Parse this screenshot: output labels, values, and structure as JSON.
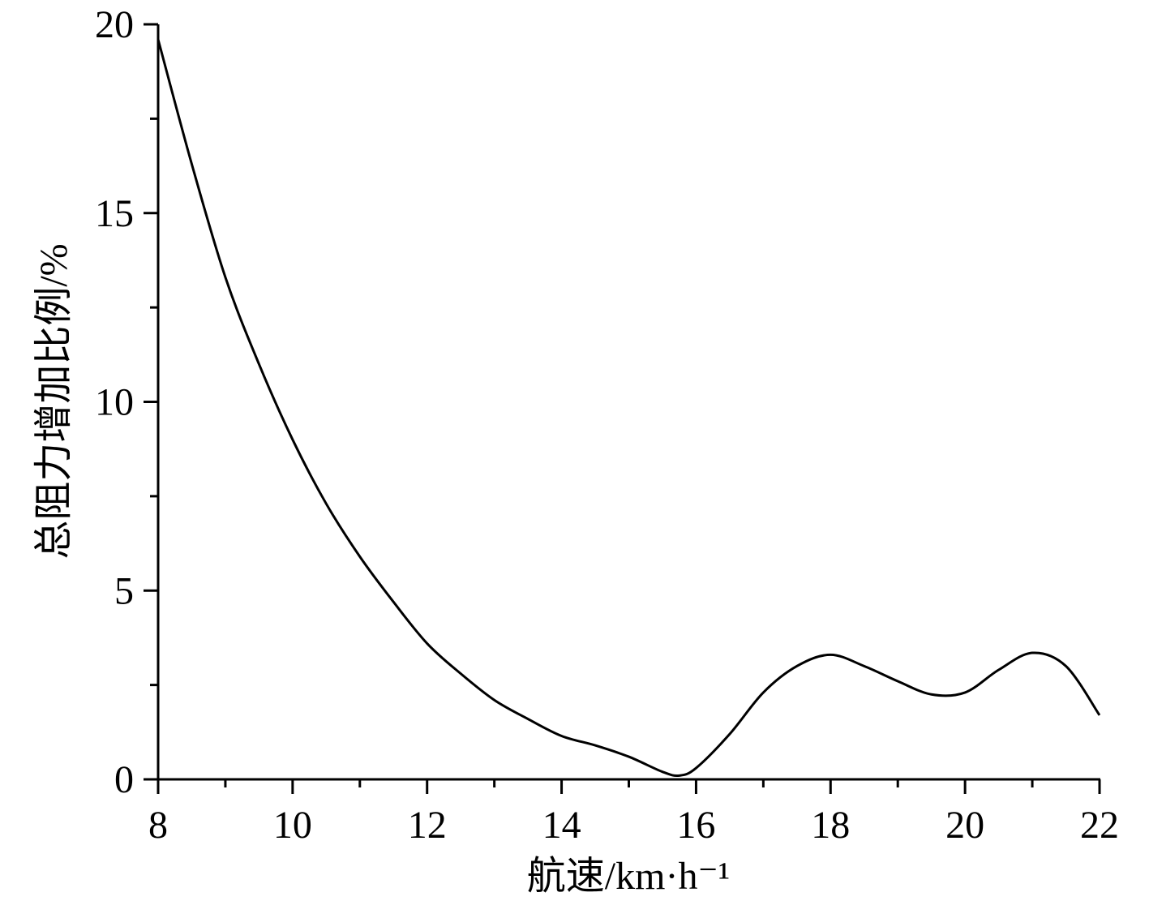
{
  "chart_data": {
    "type": "line",
    "x_label": "航速/km·h⁻¹",
    "y_label": "总阻力增加比例/%",
    "x": [
      8,
      8.5,
      9,
      9.5,
      10,
      10.5,
      11,
      11.5,
      12,
      12.5,
      13,
      13.5,
      14,
      14.5,
      15,
      15.5,
      15.75,
      16,
      16.5,
      17,
      17.5,
      18,
      18.5,
      19,
      19.5,
      20,
      20.5,
      21,
      21.5,
      22
    ],
    "series": [
      {
        "name": "总阻力增加比例",
        "color": "#000000",
        "values": [
          19.6,
          16.3,
          13.3,
          11.0,
          9.0,
          7.3,
          5.9,
          4.7,
          3.6,
          2.8,
          2.1,
          1.6,
          1.15,
          0.9,
          0.6,
          0.2,
          0.1,
          0.3,
          1.2,
          2.3,
          3.0,
          3.3,
          3.0,
          2.6,
          2.25,
          2.3,
          2.9,
          3.35,
          3.0,
          1.7
        ]
      }
    ],
    "xlim": [
      8,
      22
    ],
    "xticks": [
      8,
      10,
      12,
      14,
      16,
      18,
      20,
      22
    ],
    "xminorticks": [
      9,
      11,
      13,
      15,
      17,
      19,
      21
    ],
    "ylim": [
      0,
      20
    ],
    "yticks": [
      0,
      5,
      10,
      15,
      20
    ],
    "yminorticks": [
      2.5,
      7.5,
      12.5,
      17.5
    ]
  }
}
